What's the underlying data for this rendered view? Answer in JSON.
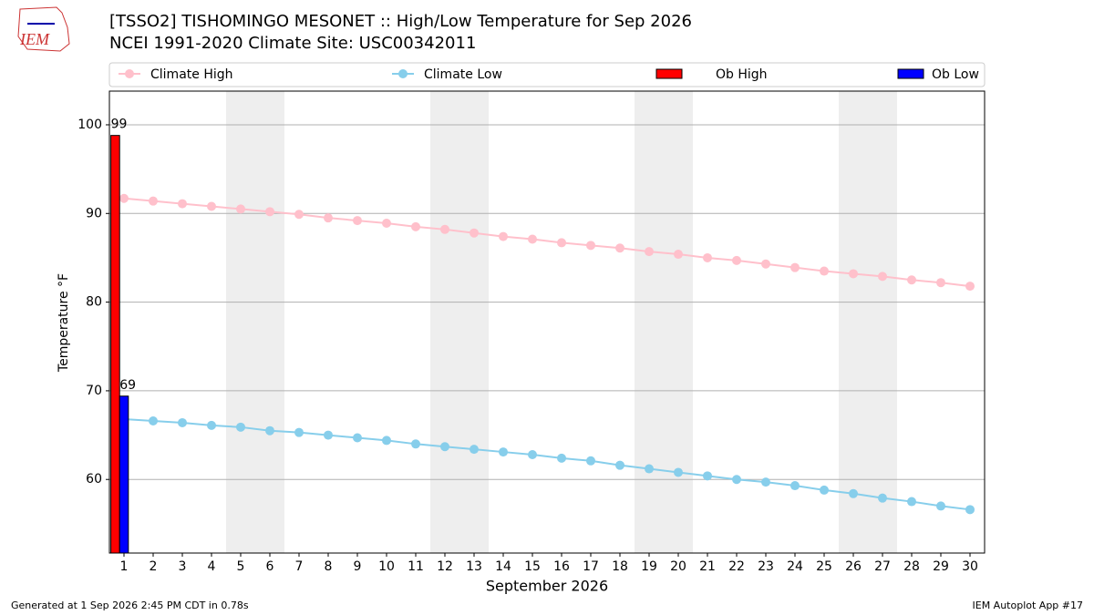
{
  "logo": "IEM",
  "footer_left": "Generated at 1 Sep 2026 2:45 PM CDT in 0.78s",
  "footer_right": "IEM Autoplot App #17",
  "chart_data": {
    "type": "combo",
    "title": "[TSSO2] TISHOMINGO MESONET :: High/Low Temperature for Sep 2026",
    "subtitle": "NCEI 1991-2020 Climate Site: USC00342011",
    "xlabel": "September 2026",
    "ylabel": "Temperature °F",
    "x": [
      1,
      2,
      3,
      4,
      5,
      6,
      7,
      8,
      9,
      10,
      11,
      12,
      13,
      14,
      15,
      16,
      17,
      18,
      19,
      20,
      21,
      22,
      23,
      24,
      25,
      26,
      27,
      28,
      29,
      30
    ],
    "xlim": [
      0.5,
      30.5
    ],
    "xticks": [
      1,
      2,
      3,
      4,
      5,
      6,
      7,
      8,
      9,
      10,
      11,
      12,
      13,
      14,
      15,
      16,
      17,
      18,
      19,
      20,
      21,
      22,
      23,
      24,
      25,
      26,
      27,
      28,
      29,
      30
    ],
    "ylim": [
      51.7,
      103.8
    ],
    "yticks": [
      60,
      70,
      80,
      90,
      100
    ],
    "grid": true,
    "shaded_days": [
      5,
      6,
      12,
      13,
      19,
      20,
      26,
      27
    ],
    "series": [
      {
        "name": "Climate High",
        "type": "line",
        "color": "#ffc0cb",
        "values": [
          91.7,
          91.4,
          91.1,
          90.8,
          90.5,
          90.2,
          89.9,
          89.5,
          89.2,
          88.9,
          88.5,
          88.2,
          87.8,
          87.4,
          87.1,
          86.7,
          86.4,
          86.1,
          85.7,
          85.4,
          85.0,
          84.7,
          84.3,
          83.9,
          83.5,
          83.2,
          82.9,
          82.5,
          82.2,
          81.8
        ]
      },
      {
        "name": "Climate Low",
        "type": "line",
        "color": "#87ceeb",
        "values": [
          66.8,
          66.6,
          66.4,
          66.1,
          65.9,
          65.5,
          65.3,
          65.0,
          64.7,
          64.4,
          64.0,
          63.7,
          63.4,
          63.1,
          62.8,
          62.4,
          62.1,
          61.6,
          61.2,
          60.8,
          60.4,
          60.0,
          59.7,
          59.3,
          58.8,
          58.4,
          57.9,
          57.5,
          57.0,
          56.6
        ]
      },
      {
        "name": "Ob High",
        "type": "bar",
        "color": "#ff0000",
        "x": [
          1
        ],
        "values": [
          98.8
        ],
        "value_labels": [
          "99"
        ]
      },
      {
        "name": "Ob Low",
        "type": "bar",
        "color": "#0000ff",
        "x": [
          1
        ],
        "values": [
          69.4
        ],
        "value_labels": [
          "69"
        ]
      }
    ]
  }
}
